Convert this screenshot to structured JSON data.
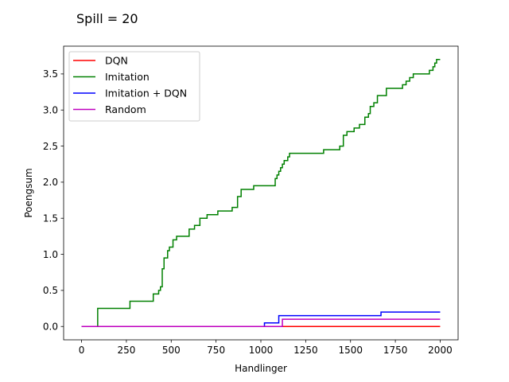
{
  "chart_data": {
    "type": "line",
    "title": "Spill = 20",
    "xlabel": "Handlinger",
    "ylabel": "Poengsum",
    "xlim": [
      -100,
      2100
    ],
    "ylim": [
      -0.185,
      3.885
    ],
    "xticks": [
      0,
      250,
      500,
      750,
      1000,
      1250,
      1500,
      1750,
      2000
    ],
    "xtick_labels": [
      "0",
      "250",
      "500",
      "750",
      "1000",
      "1250",
      "1500",
      "1750",
      "2000"
    ],
    "yticks": [
      0.0,
      0.5,
      1.0,
      1.5,
      2.0,
      2.5,
      3.0,
      3.5
    ],
    "ytick_labels": [
      "0.0",
      "0.5",
      "1.0",
      "1.5",
      "2.0",
      "2.5",
      "3.0",
      "3.5"
    ],
    "grid": false,
    "legend_position": "upper-left",
    "series": [
      {
        "name": "DQN",
        "color": "#ff0000",
        "x": [
          0,
          2000
        ],
        "y": [
          0,
          0
        ]
      },
      {
        "name": "Imitation",
        "color": "#008000",
        "x": [
          0,
          86,
          90,
          270,
          400,
          430,
          440,
          450,
          460,
          480,
          490,
          510,
          530,
          550,
          600,
          630,
          660,
          700,
          760,
          840,
          870,
          890,
          960,
          1000,
          1080,
          1090,
          1100,
          1110,
          1120,
          1130,
          1150,
          1160,
          1180,
          1350,
          1440,
          1460,
          1480,
          1520,
          1550,
          1580,
          1600,
          1610,
          1630,
          1650,
          1700,
          1790,
          1810,
          1830,
          1850,
          1900,
          1940,
          1960,
          1970,
          1980,
          2000
        ],
        "y": [
          0,
          0,
          0.25,
          0.35,
          0.45,
          0.5,
          0.55,
          0.8,
          0.95,
          1.05,
          1.1,
          1.2,
          1.25,
          1.25,
          1.35,
          1.4,
          1.5,
          1.55,
          1.6,
          1.65,
          1.8,
          1.9,
          1.95,
          1.95,
          2.05,
          2.1,
          2.15,
          2.2,
          2.25,
          2.3,
          2.35,
          2.4,
          2.4,
          2.45,
          2.5,
          2.65,
          2.7,
          2.75,
          2.8,
          2.9,
          2.95,
          3.05,
          3.1,
          3.2,
          3.3,
          3.35,
          3.4,
          3.45,
          3.5,
          3.5,
          3.55,
          3.6,
          3.65,
          3.7,
          3.7
        ]
      },
      {
        "name": "Imitation + DQN",
        "color": "#0000ff",
        "x": [
          0,
          1020,
          1100,
          1670,
          2000
        ],
        "y": [
          0,
          0.05,
          0.15,
          0.2,
          0.2
        ]
      },
      {
        "name": "Random",
        "color": "#bf00bf",
        "x": [
          0,
          1120,
          2000
        ],
        "y": [
          0,
          0.1,
          0.1
        ]
      }
    ]
  }
}
